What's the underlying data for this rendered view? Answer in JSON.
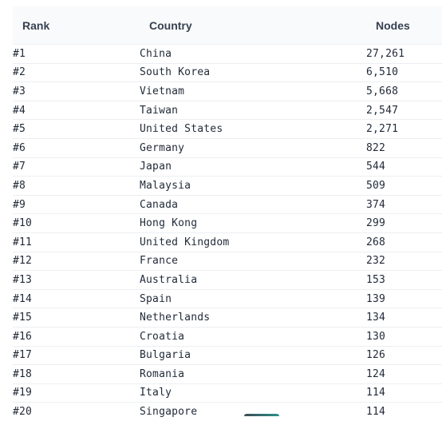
{
  "table": {
    "headers": {
      "rank": "Rank",
      "country": "Country",
      "nodes": "Nodes"
    },
    "rows": [
      {
        "rank": "#1",
        "country": "China",
        "nodes": "27,261"
      },
      {
        "rank": "#2",
        "country": "South Korea",
        "nodes": "6,510"
      },
      {
        "rank": "#3",
        "country": "Vietnam",
        "nodes": "5,668"
      },
      {
        "rank": "#4",
        "country": "Taiwan",
        "nodes": "2,547"
      },
      {
        "rank": "#5",
        "country": "United States",
        "nodes": "2,271"
      },
      {
        "rank": "#6",
        "country": "Germany",
        "nodes": "822"
      },
      {
        "rank": "#7",
        "country": "Japan",
        "nodes": "544"
      },
      {
        "rank": "#8",
        "country": "Malaysia",
        "nodes": "509"
      },
      {
        "rank": "#9",
        "country": "Canada",
        "nodes": "374"
      },
      {
        "rank": "#10",
        "country": "Hong Kong",
        "nodes": "299"
      },
      {
        "rank": "#11",
        "country": "United Kingdom",
        "nodes": "268"
      },
      {
        "rank": "#12",
        "country": "France",
        "nodes": "232"
      },
      {
        "rank": "#13",
        "country": "Australia",
        "nodes": "153"
      },
      {
        "rank": "#14",
        "country": "Spain",
        "nodes": "139"
      },
      {
        "rank": "#15",
        "country": "Netherlands",
        "nodes": "134"
      },
      {
        "rank": "#16",
        "country": "Croatia",
        "nodes": "130"
      },
      {
        "rank": "#17",
        "country": "Bulgaria",
        "nodes": "126"
      },
      {
        "rank": "#18",
        "country": "Romania",
        "nodes": "124"
      },
      {
        "rank": "#19",
        "country": "Italy",
        "nodes": "114"
      },
      {
        "rank": "#20",
        "country": "Singapore",
        "nodes": "114"
      }
    ]
  }
}
